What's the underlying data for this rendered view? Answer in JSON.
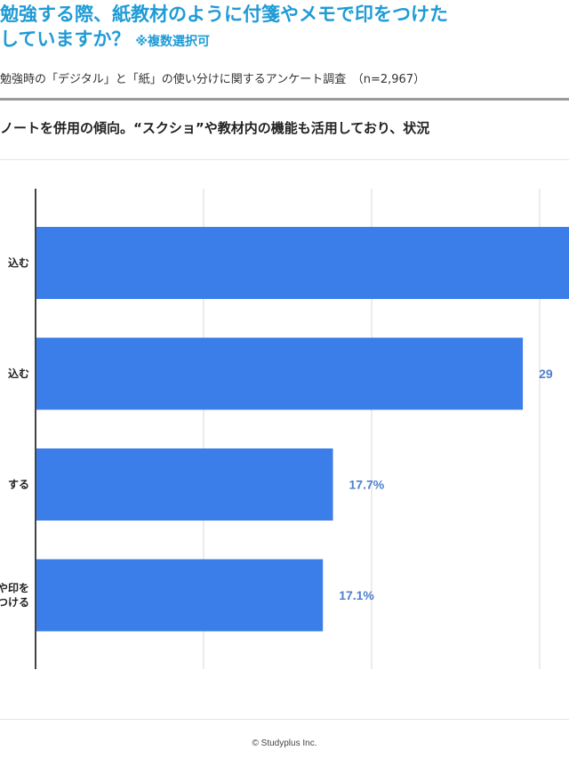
{
  "header": {
    "title_line1": "勉強する際、紙教材のように付箋やメモで印をつけた",
    "title_line2": "していますか？",
    "title_note": "※複数選択可",
    "subtitle": "勉強時の「デジタル」と「紙」の使い分けに関するアンケート調査　（n=2,967）",
    "heading": "ノートを併用の傾向。“スクショ”や教材内の機能も活用しており、状況"
  },
  "chart_data": {
    "type": "bar",
    "orientation": "horizontal",
    "categories": [
      "…込む",
      "…込む",
      "…する",
      "…や印を\n…つける"
    ],
    "category_lines": [
      [
        "込む"
      ],
      [
        "込む"
      ],
      [
        "する"
      ],
      [
        "や印を",
        "つける"
      ]
    ],
    "values": [
      null,
      29,
      17.7,
      17.1
    ],
    "data_labels": [
      "",
      "29",
      "17.7%",
      "17.1%"
    ],
    "xlim": [
      0,
      30
    ],
    "grid": true,
    "bar_color": "#3b7de9",
    "label_color": "#4f7fcc"
  },
  "footer": {
    "copyright": "© Studyplus Inc."
  }
}
